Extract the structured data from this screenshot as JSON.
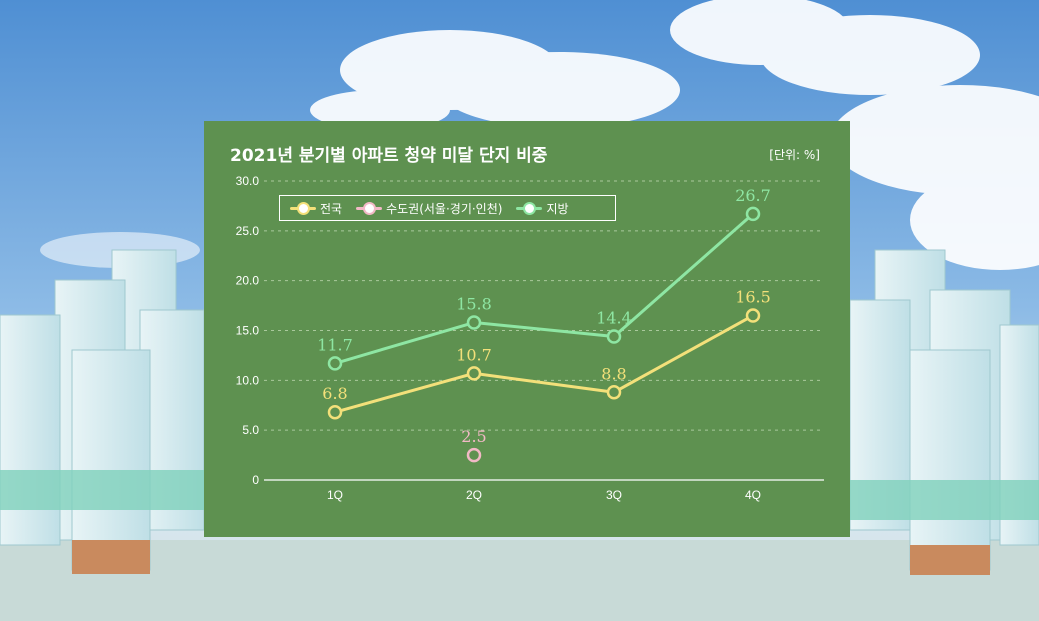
{
  "chart_data": {
    "type": "line",
    "title": "2021년 분기별 아파트 청약 미달 단지 비중",
    "unit_label": "[단위: %]",
    "categories": [
      "1Q",
      "2Q",
      "3Q",
      "4Q"
    ],
    "y_ticks": [
      "30.0",
      "25.0",
      "20.0",
      "15.0",
      "10.0",
      "5.0",
      "0"
    ],
    "ylim": [
      0,
      30
    ],
    "grid": true,
    "legend_position": "top-left",
    "series": [
      {
        "name": "전국",
        "color": "#f3e07a",
        "values": [
          6.8,
          10.7,
          8.8,
          16.5
        ],
        "labels": [
          "6.8",
          "10.7",
          "8.8",
          "16.5"
        ]
      },
      {
        "name": "수도권(서울·경기·인천)",
        "color": "#f2b9c6",
        "values": [
          null,
          2.5,
          null,
          null
        ],
        "labels": [
          null,
          "2.5",
          null,
          null
        ]
      },
      {
        "name": "지방",
        "color": "#8ee6a3",
        "values": [
          11.7,
          15.8,
          14.4,
          26.7
        ],
        "labels": [
          "11.7",
          "15.8",
          "14.4",
          "26.7"
        ]
      }
    ]
  },
  "colors": {
    "panel": "#5e9150",
    "sky_top": "#5a93d2",
    "sky_bottom": "#cfe0ea",
    "ground": "#c9dbd8"
  }
}
